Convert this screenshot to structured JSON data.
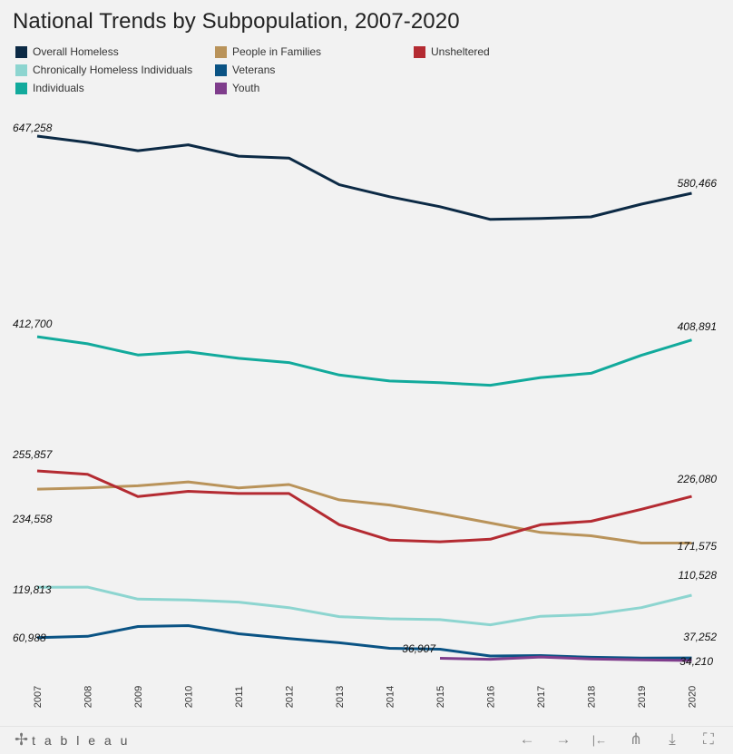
{
  "title": "National Trends by Subpopulation, 2007-2020",
  "legend": [
    {
      "label": "Overall Homeless",
      "color": "#0c2a45"
    },
    {
      "label": "People in Families",
      "color": "#b9935a"
    },
    {
      "label": "Unsheltered",
      "color": "#b42b32"
    },
    {
      "label": "Chronically Homeless Individuals",
      "color": "#8dd5d0"
    },
    {
      "label": "Veterans",
      "color": "#0a5384"
    },
    {
      "label": "Individuals",
      "color": "#12aa9c"
    },
    {
      "label": "Youth",
      "color": "#7f3d8c"
    }
  ],
  "chart_data": {
    "type": "line",
    "title": "National Trends by Subpopulation, 2007-2020",
    "xlabel": "",
    "ylabel": "",
    "x": [
      "2007",
      "2008",
      "2009",
      "2010",
      "2011",
      "2012",
      "2013",
      "2014",
      "2015",
      "2016",
      "2017",
      "2018",
      "2019",
      "2020"
    ],
    "ylim": [
      0,
      700000
    ],
    "grid": false,
    "legend_position": "top",
    "series": [
      {
        "name": "Overall Homeless",
        "color": "#0c2a45",
        "values": [
          647258,
          639784,
          630227,
          637077,
          623788,
          621553,
          590364,
          576450,
          564708,
          549928,
          550996,
          552830,
          567715,
          580466
        ]
      },
      {
        "name": "Individuals",
        "color": "#12aa9c",
        "values": [
          412700,
          404525,
          391445,
          395000,
          387500,
          382500,
          368000,
          361000,
          359000,
          356000,
          365000,
          370000,
          391000,
          408891
        ]
      },
      {
        "name": "Unsheltered",
        "color": "#b42b32",
        "values": [
          255857,
          252000,
          226000,
          232000,
          229500,
          229500,
          193000,
          175000,
          173000,
          176000,
          193000,
          197000,
          211000,
          226080
        ]
      },
      {
        "name": "People in Families",
        "color": "#b9935a",
        "values": [
          234558,
          236000,
          238500,
          243000,
          236000,
          240000,
          222000,
          216000,
          206000,
          195000,
          184000,
          180000,
          171600,
          171575
        ]
      },
      {
        "name": "Chronically Homeless Individuals",
        "color": "#8dd5d0",
        "values": [
          119813,
          120000,
          106000,
          105000,
          102500,
          96000,
          85500,
          83000,
          82000,
          76000,
          86000,
          88000,
          96000,
          110528
        ]
      },
      {
        "name": "Veterans",
        "color": "#0a5384",
        "values": [
          60988,
          62500,
          74000,
          75000,
          65500,
          60000,
          55000,
          48500,
          47500,
          39500,
          40000,
          38000,
          37100,
          37252
        ]
      },
      {
        "name": "Youth",
        "color": "#7f3d8c",
        "values": [
          null,
          null,
          null,
          null,
          null,
          null,
          null,
          null,
          36907,
          35700,
          38300,
          36000,
          35000,
          34210
        ]
      }
    ],
    "data_labels": [
      {
        "series": "Overall Homeless",
        "start": "647,258",
        "end": "580,466"
      },
      {
        "series": "Individuals",
        "start": "412,700",
        "end": "408,891"
      },
      {
        "series": "Unsheltered",
        "start": "255,857",
        "end": "226,080"
      },
      {
        "series": "People in Families",
        "start": "234,558",
        "end": "171,575"
      },
      {
        "series": "Chronically Homeless Individuals",
        "start": "119,813",
        "end": "110,528"
      },
      {
        "series": "Veterans",
        "start": "60,988",
        "end": "37,252"
      },
      {
        "series": "Youth",
        "start": "36,907",
        "end": "34,210"
      }
    ]
  },
  "toolbar": {
    "logo_text": "t a b l e a u",
    "logo_mark": "✢",
    "undo_icon": "←",
    "redo_icon": "→",
    "revert_icon": "|←",
    "share_icon": "⋔",
    "download_icon": "⤓",
    "fullscreen_icon": "⛶"
  }
}
